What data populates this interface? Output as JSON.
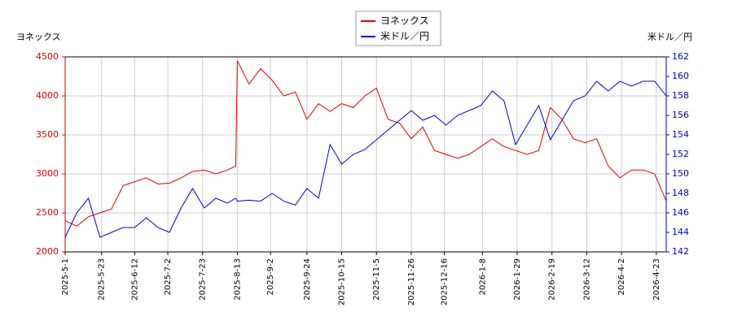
{
  "chart_data": {
    "type": "line",
    "x": [
      "2025-5-1",
      "2025-5-8",
      "2025-5-15",
      "2025-5-22",
      "2025-5-29",
      "2025-6-5",
      "2025-6-12",
      "2025-6-19",
      "2025-6-26",
      "2025-7-3",
      "2025-7-10",
      "2025-7-17",
      "2025-7-24",
      "2025-7-31",
      "2025-8-7",
      "2025-8-12",
      "2025-8-13",
      "2025-8-20",
      "2025-8-27",
      "2025-9-3",
      "2025-9-10",
      "2025-9-17",
      "2025-9-24",
      "2025-10-1",
      "2025-10-8",
      "2025-10-15",
      "2025-10-22",
      "2025-10-29",
      "2025-11-5",
      "2025-11-12",
      "2025-11-19",
      "2025-11-26",
      "2025-12-3",
      "2025-12-10",
      "2025-12-17",
      "2025-12-24",
      "2025-12-31",
      "2026-1-7",
      "2026-1-14",
      "2026-1-21",
      "2026-1-28",
      "2026-2-4",
      "2026-2-11",
      "2026-2-18",
      "2026-2-25",
      "2026-3-4",
      "2026-3-11",
      "2026-3-18",
      "2026-3-25",
      "2026-4-1",
      "2026-4-8",
      "2026-4-15",
      "2026-4-22",
      "2026-4-29"
    ],
    "series": [
      {
        "name": "ヨネックス",
        "color": "#dd0000",
        "axis": "y",
        "values": [
          2400,
          2330,
          2450,
          2500,
          2550,
          2850,
          2900,
          2950,
          2870,
          2880,
          2950,
          3030,
          3050,
          3000,
          3050,
          3100,
          4450,
          4150,
          4350,
          4200,
          4000,
          4050,
          3700,
          3900,
          3800,
          3900,
          3850,
          4000,
          4100,
          3700,
          3650,
          3450,
          3600,
          3300,
          3250,
          3200,
          3250,
          3350,
          3450,
          3350,
          3300,
          3250,
          3300,
          3850,
          3700,
          3450,
          3400,
          3450,
          3100,
          2950,
          3050,
          3050,
          3000,
          2650
        ]
      },
      {
        "name": "米ドル／円",
        "color": "#0000cc",
        "axis": "y2",
        "values": [
          143.5,
          146,
          147.5,
          143.5,
          144,
          144.5,
          144.5,
          145.5,
          144.5,
          144,
          146.5,
          148.5,
          146.5,
          147.5,
          147,
          147.5,
          147.2,
          147.3,
          147.2,
          148,
          147.2,
          146.8,
          148.5,
          147.5,
          153,
          151,
          152,
          152.5,
          153.5,
          154.5,
          155.5,
          156.5,
          155.5,
          156,
          155,
          156,
          156.5,
          157,
          158.5,
          157.5,
          153,
          155,
          157,
          153.5,
          155.5,
          157.5,
          158,
          159.5,
          158.5,
          159.5,
          159,
          159.5,
          159.5,
          158
        ]
      }
    ],
    "y_label": "ヨネックス",
    "y2_label": "米ドル／円",
    "xlim": [
      "2025-5-1",
      "2026-4-29"
    ],
    "xticks": [
      "2025-5-1",
      "2025-5-23",
      "2025-6-12",
      "2025-7-2",
      "2025-7-23",
      "2025-8-13",
      "2025-9-2",
      "2025-9-24",
      "2025-10-15",
      "2025-11-5",
      "2025-11-26",
      "2025-12-16",
      "2026-1-8",
      "2026-1-29",
      "2026-2-19",
      "2026-3-12",
      "2026-4-2",
      "2026-4-23"
    ],
    "ylim": [
      2000,
      4500
    ],
    "yticks": [
      2000,
      2500,
      3000,
      3500,
      4000,
      4500
    ],
    "y2lim": [
      142,
      162
    ],
    "y2ticks": [
      142,
      144,
      146,
      148,
      150,
      152,
      154,
      156,
      158,
      160,
      162
    ],
    "grid": true
  }
}
